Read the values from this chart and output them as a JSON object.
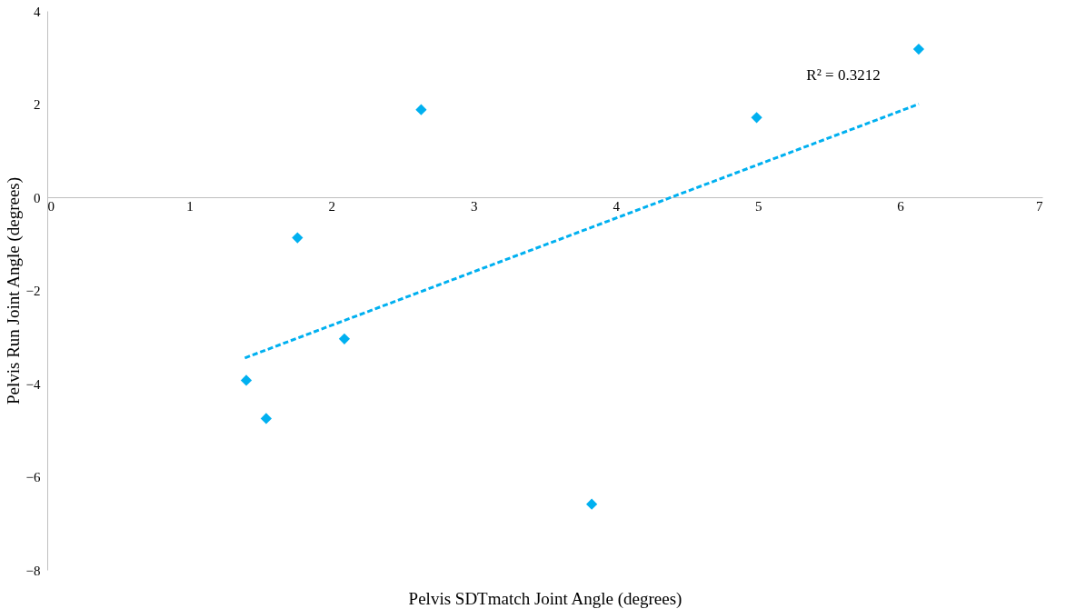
{
  "chart_data": {
    "type": "scatter",
    "xlabel": "Pelvis SDTmatch Joint Angle (degrees)",
    "ylabel": "Pelvis Run Joint Angle (degrees)",
    "xlim": [
      0,
      7
    ],
    "xticks": [
      0,
      1,
      2,
      3,
      4,
      5,
      6,
      7
    ],
    "ylim": [
      -8,
      4
    ],
    "yticks": [
      -8,
      -6,
      -4,
      -2,
      0,
      2,
      4
    ],
    "grid": false,
    "series": [
      {
        "color": "#00b0f0",
        "marker": "diamond",
        "x": [
          1.76,
          2.63,
          4.99,
          6.13,
          2.09,
          1.4,
          1.54,
          3.83
        ],
        "values": [
          -0.87,
          1.88,
          1.71,
          3.18,
          -3.04,
          -3.93,
          -4.75,
          -6.59
        ]
      },
      {
        "type": "line",
        "color": "#00b0f0",
        "line_style": "dashed",
        "x": [
          1.39,
          6.13
        ],
        "values": [
          -3.45,
          2.0
        ]
      }
    ],
    "annotations": [
      "R² = 0.3212"
    ]
  }
}
